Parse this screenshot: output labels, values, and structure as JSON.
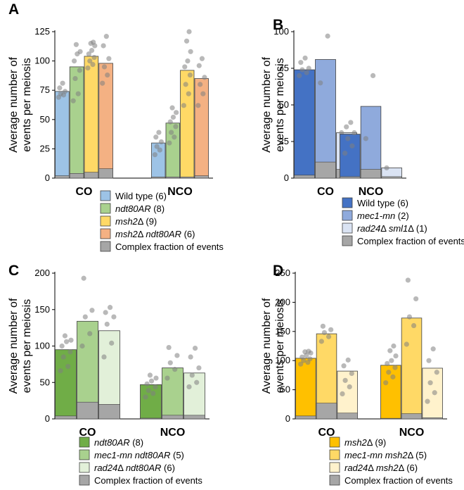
{
  "figure": {
    "ylabel_line1": "Average number of",
    "ylabel_line2": "events per meiosis",
    "complex_color": "#a6a6a6"
  },
  "chart_data": [
    {
      "panel": "A",
      "type": "bar",
      "categories": [
        "CO",
        "NCO"
      ],
      "ylim": [
        0,
        125
      ],
      "yticks": [
        0,
        25,
        50,
        75,
        100,
        125
      ],
      "series": [
        {
          "name": "Wild type (6)",
          "italic": "",
          "plain": " (6)",
          "color": "#9dc3e6",
          "values": [
            74,
            30
          ],
          "complex": [
            2,
            1
          ],
          "points": [
            [
              69,
              71,
              72,
              74,
              77,
              81
            ],
            [
              20,
              24,
              27,
              31,
              35,
              39
            ]
          ]
        },
        {
          "name": "ndt80AR (8)",
          "italic": "ndt80AR",
          "plain": " (8)",
          "color": "#a9d18e",
          "values": [
            95,
            47
          ],
          "complex": [
            4,
            1
          ],
          "points": [
            [
              66,
              72,
              85,
              92,
              100,
              106,
              108,
              114
            ],
            [
              30,
              35,
              39,
              44,
              48,
              52,
              56,
              60
            ]
          ]
        },
        {
          "name": "msh2Δ (9)",
          "italic": "msh2",
          "plain": "Δ (9)",
          "color": "#ffd966",
          "values": [
            104,
            92
          ],
          "complex": [
            5,
            1
          ],
          "points": [
            [
              94,
              97,
              100,
              103,
              106,
              109,
              113,
              115,
              116
            ],
            [
              62,
              72,
              80,
              88,
              95,
              100,
              108,
              117,
              125
            ]
          ]
        },
        {
          "name": "msh2Δ ndt80AR (6)",
          "italic": "msh2",
          "plain": "Δ ",
          "italic2": "ndt80AR",
          "plain2": " (6)",
          "color": "#f4b183",
          "values": [
            98,
            85
          ],
          "complex": [
            8,
            2
          ],
          "points": [
            [
              81,
              88,
              95,
              102,
              113,
              121
            ],
            [
              62,
              72,
              80,
              86,
              96,
              102
            ]
          ]
        },
        {
          "name": "Complex fraction of events",
          "italic": "",
          "plain": "Complex fraction of events",
          "color": "#a6a6a6",
          "legend_only": true
        }
      ]
    },
    {
      "panel": "B",
      "type": "bar",
      "categories": [
        "CO",
        "NCO"
      ],
      "ylim": [
        0,
        100
      ],
      "yticks": [
        0,
        25,
        50,
        75,
        100
      ],
      "series": [
        {
          "name": "Wild type (6)",
          "italic": "",
          "plain": " (6)",
          "color": "#4472c4",
          "values": [
            74,
            30
          ],
          "complex": [
            2,
            1
          ],
          "points": [
            [
              70,
              72,
              74,
              75,
              79,
              82
            ],
            [
              17,
              22,
              27,
              31,
              35,
              38
            ]
          ]
        },
        {
          "name": "mec1-mn (2)",
          "italic": "mec1-mn",
          "plain": " (2)",
          "color": "#8faadc",
          "values": [
            81,
            49
          ],
          "complex": [
            11,
            6
          ],
          "points": [
            [
              65,
              97
            ],
            [
              27,
              70
            ]
          ]
        },
        {
          "name": "rad24Δ sml1Δ (1)",
          "italic": "rad24",
          "plain": "Δ ",
          "italic2": "sml1",
          "plain2": "Δ (1)",
          "color": "#dae3f3",
          "values": [
            31,
            7
          ],
          "complex": [
            6,
            1
          ],
          "points": [
            [
              31
            ],
            [
              7
            ]
          ]
        },
        {
          "name": "Complex fraction of events",
          "italic": "",
          "plain": "Complex fraction of events",
          "color": "#a6a6a6",
          "legend_only": true
        }
      ]
    },
    {
      "panel": "C",
      "type": "bar",
      "categories": [
        "CO",
        "NCO"
      ],
      "ylim": [
        0,
        200
      ],
      "yticks": [
        0,
        50,
        100,
        150,
        200
      ],
      "series": [
        {
          "name": "ndt80AR (8)",
          "italic": "ndt80AR",
          "plain": " (8)",
          "color": "#70ad47",
          "values": [
            95,
            47
          ],
          "complex": [
            4,
            1
          ],
          "points": [
            [
              66,
              72,
              85,
              92,
              100,
              106,
              108,
              114
            ],
            [
              30,
              35,
              39,
              44,
              48,
              52,
              56,
              60
            ]
          ]
        },
        {
          "name": "mec1-mn ndt80AR (5)",
          "italic": "mec1-mn ndt80AR",
          "plain": " (5)",
          "color": "#a9d18e",
          "values": [
            134,
            70
          ],
          "complex": [
            23,
            5
          ],
          "points": [
            [
              100,
              117,
              140,
              149,
              193
            ],
            [
              56,
              68,
              77,
              87,
              98
            ]
          ]
        },
        {
          "name": "rad24Δ ndt80AR (6)",
          "italic": "rad24",
          "plain": "Δ ",
          "italic2": "ndt80AR",
          "plain2": " (6)",
          "color": "#e2f0d9",
          "values": [
            121,
            63
          ],
          "complex": [
            20,
            5
          ],
          "points": [
            [
              85,
              104,
              130,
              140,
              146,
              153
            ],
            [
              44,
              50,
              60,
              70,
              85,
              97
            ]
          ]
        },
        {
          "name": "Complex fraction of events",
          "italic": "",
          "plain": "Complex fraction of events",
          "color": "#a6a6a6",
          "legend_only": true
        }
      ]
    },
    {
      "panel": "D",
      "type": "bar",
      "categories": [
        "CO",
        "NCO"
      ],
      "ylim": [
        0,
        250
      ],
      "yticks": [
        0,
        50,
        100,
        150,
        200,
        250
      ],
      "series": [
        {
          "name": "msh2Δ (9)",
          "italic": "msh2",
          "plain": "Δ (9)",
          "color": "#ffc000",
          "values": [
            104,
            92
          ],
          "complex": [
            5,
            1
          ],
          "points": [
            [
              94,
              97,
              100,
              103,
              106,
              109,
              113,
              115,
              116
            ],
            [
              62,
              72,
              80,
              88,
              95,
              100,
              108,
              117,
              125
            ]
          ]
        },
        {
          "name": "mec1-mn msh2Δ (5)",
          "italic": "mec1-mn msh2",
          "plain": "Δ (5)",
          "color": "#ffd966",
          "values": [
            146,
            173
          ],
          "complex": [
            27,
            9
          ],
          "points": [
            [
              133,
              141,
              148,
              153,
              159
            ],
            [
              128,
              160,
              175,
              206,
              238
            ]
          ]
        },
        {
          "name": "rad24Δ msh2Δ (6)",
          "italic": "rad24",
          "plain": "Δ ",
          "italic2": "msh2",
          "plain2": "Δ (6)",
          "color": "#fff2cc",
          "values": [
            82,
            87
          ],
          "complex": [
            10,
            2
          ],
          "points": [
            [
              43,
              55,
              66,
              78,
              91,
              101
            ],
            [
              30,
              45,
              62,
              80,
              100,
              120
            ]
          ]
        },
        {
          "name": "Complex fraction of events",
          "italic": "",
          "plain": "Complex fraction of events",
          "color": "#a6a6a6",
          "legend_only": true
        }
      ]
    }
  ]
}
